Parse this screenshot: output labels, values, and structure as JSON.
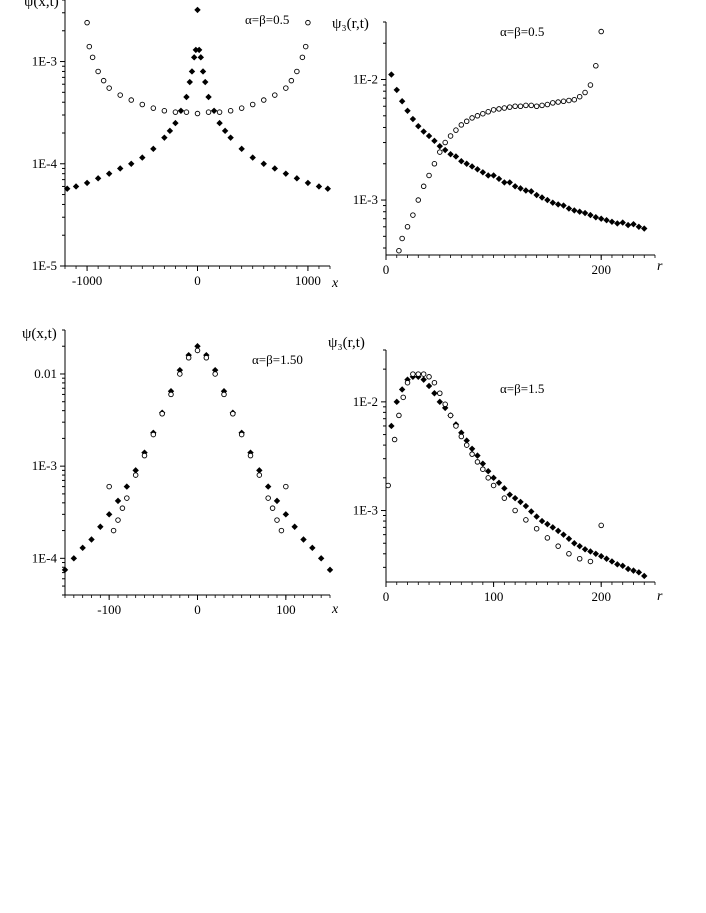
{
  "chart_data": [
    {
      "type": "scatter",
      "ylabel": "ψ(x,t)",
      "xlabel": "x",
      "annotation": "α=β=0.5",
      "xlim": [
        -1200,
        1200
      ],
      "ylim": [
        1e-05,
        0.004
      ],
      "yscale": "log",
      "xticks": [
        "-1000",
        "0",
        "1000"
      ],
      "yticks": [
        "1E-5",
        "1E-4",
        "1E-3"
      ],
      "series": [
        {
          "marker": "filled-diamond",
          "x": [
            -1180,
            -1100,
            -1000,
            -900,
            -800,
            -700,
            -600,
            -500,
            -400,
            -300,
            -250,
            -200,
            -150,
            -100,
            -70,
            -50,
            -30,
            -15,
            0,
            15,
            30,
            50,
            70,
            100,
            150,
            200,
            250,
            300,
            400,
            500,
            600,
            700,
            800,
            900,
            1000,
            1100,
            1180
          ],
          "y": [
            5.7e-05,
            6e-05,
            6.5e-05,
            7.2e-05,
            8e-05,
            9e-05,
            0.0001,
            0.000115,
            0.00014,
            0.00018,
            0.00021,
            0.00025,
            0.00033,
            0.00045,
            0.00063,
            0.0008,
            0.0011,
            0.0013,
            0.0032,
            0.0013,
            0.0011,
            0.0008,
            0.00063,
            0.00045,
            0.00033,
            0.00025,
            0.00021,
            0.00018,
            0.00014,
            0.000115,
            0.0001,
            9e-05,
            8e-05,
            7.2e-05,
            6.5e-05,
            6e-05,
            5.7e-05
          ]
        },
        {
          "marker": "open-circle",
          "x": [
            -1000,
            -980,
            -950,
            -900,
            -850,
            -800,
            -700,
            -600,
            -500,
            -400,
            -300,
            -200,
            -100,
            0,
            100,
            200,
            300,
            400,
            500,
            600,
            700,
            800,
            850,
            900,
            950,
            980,
            1000
          ],
          "y": [
            0.0024,
            0.0014,
            0.0011,
            0.0008,
            0.00065,
            0.00055,
            0.00047,
            0.00042,
            0.00038,
            0.00035,
            0.00033,
            0.00032,
            0.00032,
            0.00031,
            0.00032,
            0.00032,
            0.00033,
            0.00035,
            0.00038,
            0.00042,
            0.00047,
            0.00055,
            0.00065,
            0.0008,
            0.0011,
            0.0014,
            0.0024
          ]
        }
      ]
    },
    {
      "type": "scatter",
      "ylabel": "ψ₃(r,t)",
      "xlabel": "r",
      "annotation": "α=β=0.5",
      "xlim": [
        0,
        250
      ],
      "ylim": [
        0.00035,
        0.03
      ],
      "yscale": "log",
      "xticks": [
        "0",
        "200"
      ],
      "yticks": [
        "1E-3",
        "1E-2"
      ],
      "series": [
        {
          "marker": "filled-diamond",
          "x": [
            5,
            10,
            15,
            20,
            25,
            30,
            35,
            40,
            45,
            50,
            55,
            60,
            65,
            70,
            75,
            80,
            85,
            90,
            95,
            100,
            105,
            110,
            115,
            120,
            125,
            130,
            135,
            140,
            145,
            150,
            155,
            160,
            165,
            170,
            175,
            180,
            185,
            190,
            195,
            200,
            205,
            210,
            215,
            220,
            225,
            230,
            235,
            240
          ],
          "y": [
            0.011,
            0.0082,
            0.0066,
            0.0055,
            0.0047,
            0.0041,
            0.0037,
            0.0034,
            0.0031,
            0.0028,
            0.0026,
            0.0024,
            0.0023,
            0.0021,
            0.002,
            0.0019,
            0.0018,
            0.0017,
            0.0016,
            0.0016,
            0.0015,
            0.0014,
            0.0014,
            0.0013,
            0.00125,
            0.0012,
            0.00118,
            0.0011,
            0.00105,
            0.001,
            0.00095,
            0.00092,
            0.0009,
            0.00085,
            0.00082,
            0.0008,
            0.00078,
            0.00075,
            0.00072,
            0.0007,
            0.00068,
            0.00066,
            0.00064,
            0.00065,
            0.00062,
            0.00063,
            0.0006,
            0.00058
          ]
        },
        {
          "marker": "open-circle",
          "x": [
            12,
            15,
            20,
            25,
            30,
            35,
            40,
            45,
            50,
            55,
            60,
            65,
            70,
            75,
            80,
            85,
            90,
            95,
            100,
            105,
            110,
            115,
            120,
            125,
            130,
            135,
            140,
            145,
            150,
            155,
            160,
            165,
            170,
            175,
            180,
            185,
            190,
            195,
            200
          ],
          "y": [
            0.00038,
            0.00048,
            0.0006,
            0.00075,
            0.001,
            0.0013,
            0.0016,
            0.002,
            0.0025,
            0.003,
            0.0034,
            0.0038,
            0.0042,
            0.0045,
            0.0048,
            0.005,
            0.0052,
            0.0054,
            0.0056,
            0.0057,
            0.0058,
            0.0059,
            0.006,
            0.006,
            0.0061,
            0.0061,
            0.006,
            0.0061,
            0.0062,
            0.0064,
            0.0065,
            0.0066,
            0.0067,
            0.0068,
            0.0072,
            0.0078,
            0.009,
            0.013,
            0.025
          ]
        }
      ]
    },
    {
      "type": "scatter",
      "ylabel": "ψ(x,t)",
      "xlabel": "x",
      "annotation": "α=β=1.50",
      "xlim": [
        -150,
        150
      ],
      "ylim": [
        4e-05,
        0.03
      ],
      "yscale": "log",
      "xticks": [
        "-100",
        "0",
        "100"
      ],
      "yticks": [
        "1E-4",
        "1E-3",
        "0.01"
      ],
      "series": [
        {
          "marker": "filled-diamond",
          "x": [
            -150,
            -140,
            -130,
            -120,
            -110,
            -100,
            -90,
            -80,
            -70,
            -60,
            -50,
            -40,
            -30,
            -20,
            -10,
            0,
            10,
            20,
            30,
            40,
            50,
            60,
            70,
            80,
            90,
            100,
            110,
            120,
            130,
            140,
            150
          ],
          "y": [
            7.5e-05,
            0.0001,
            0.00013,
            0.00016,
            0.00022,
            0.0003,
            0.00042,
            0.0006,
            0.0009,
            0.0014,
            0.0023,
            0.0038,
            0.0065,
            0.011,
            0.016,
            0.02,
            0.016,
            0.011,
            0.0065,
            0.0038,
            0.0023,
            0.0014,
            0.0009,
            0.0006,
            0.00042,
            0.0003,
            0.00022,
            0.00016,
            0.00013,
            0.0001,
            7.5e-05
          ]
        },
        {
          "marker": "open-circle",
          "x": [
            -100,
            -95,
            -90,
            -85,
            -80,
            -70,
            -60,
            -50,
            -40,
            -30,
            -20,
            -10,
            0,
            10,
            20,
            30,
            40,
            50,
            60,
            70,
            80,
            85,
            90,
            95,
            100
          ],
          "y": [
            0.0006,
            0.0002,
            0.00026,
            0.00035,
            0.00045,
            0.0008,
            0.0013,
            0.0022,
            0.0037,
            0.006,
            0.01,
            0.015,
            0.018,
            0.015,
            0.01,
            0.006,
            0.0037,
            0.0022,
            0.0013,
            0.0008,
            0.00045,
            0.00035,
            0.00026,
            0.0002,
            0.0006
          ]
        }
      ]
    },
    {
      "type": "scatter",
      "ylabel": "ψ₃(r,t)",
      "xlabel": "r",
      "annotation": "α=β=1.5",
      "xlim": [
        0,
        250
      ],
      "ylim": [
        0.00022,
        0.03
      ],
      "yscale": "log",
      "xticks": [
        "0",
        "100",
        "200"
      ],
      "yticks": [
        "1E-3",
        "1E-2"
      ],
      "series": [
        {
          "marker": "filled-diamond",
          "x": [
            5,
            10,
            15,
            20,
            25,
            30,
            35,
            40,
            45,
            50,
            55,
            60,
            65,
            70,
            75,
            80,
            85,
            90,
            95,
            100,
            105,
            110,
            115,
            120,
            125,
            130,
            135,
            140,
            145,
            150,
            155,
            160,
            165,
            170,
            175,
            180,
            185,
            190,
            195,
            200,
            205,
            210,
            215,
            220,
            225,
            230,
            235,
            240
          ],
          "y": [
            0.006,
            0.01,
            0.013,
            0.016,
            0.017,
            0.017,
            0.016,
            0.014,
            0.012,
            0.01,
            0.0088,
            0.0075,
            0.0062,
            0.0052,
            0.0044,
            0.0037,
            0.0032,
            0.0027,
            0.0023,
            0.002,
            0.0018,
            0.0016,
            0.0014,
            0.0013,
            0.0012,
            0.0011,
            0.00098,
            0.00088,
            0.0008,
            0.00075,
            0.0007,
            0.00065,
            0.0006,
            0.00055,
            0.0005,
            0.00047,
            0.00044,
            0.00042,
            0.0004,
            0.00038,
            0.00036,
            0.00034,
            0.00032,
            0.00031,
            0.00029,
            0.00028,
            0.00027,
            0.00025
          ]
        },
        {
          "marker": "open-circle",
          "x": [
            2,
            8,
            12,
            16,
            20,
            25,
            30,
            35,
            40,
            45,
            50,
            55,
            60,
            65,
            70,
            75,
            80,
            85,
            90,
            95,
            100,
            110,
            120,
            130,
            140,
            150,
            160,
            170,
            180,
            190,
            200
          ],
          "y": [
            0.0017,
            0.0045,
            0.0075,
            0.011,
            0.015,
            0.018,
            0.018,
            0.018,
            0.017,
            0.015,
            0.012,
            0.0095,
            0.0075,
            0.006,
            0.0048,
            0.004,
            0.0033,
            0.0028,
            0.0024,
            0.002,
            0.0017,
            0.0013,
            0.001,
            0.00082,
            0.00068,
            0.00056,
            0.00047,
            0.0004,
            0.00036,
            0.00034,
            0.00073
          ]
        }
      ]
    }
  ]
}
